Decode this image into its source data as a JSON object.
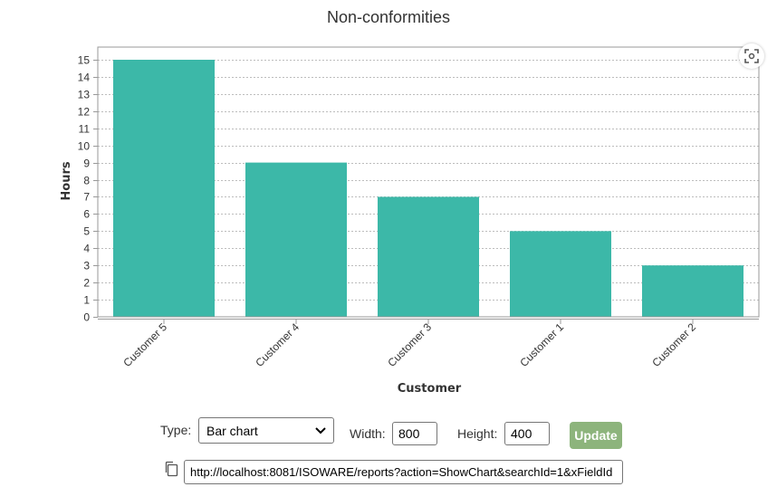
{
  "chart_data": {
    "type": "bar",
    "title": "Non-conformities",
    "xlabel": "Customer",
    "ylabel": "Hours",
    "categories": [
      "Customer 5",
      "Customer 4",
      "Customer 3",
      "Customer 1",
      "Customer 2"
    ],
    "values": [
      15,
      9,
      7,
      5,
      3
    ],
    "ylim": [
      0,
      15
    ],
    "yticks": [
      "0",
      "1",
      "2",
      "3",
      "4",
      "5",
      "6",
      "7",
      "8",
      "9",
      "10",
      "11",
      "12",
      "13",
      "14",
      "15"
    ],
    "bar_color": "#3cb8a8",
    "grid": true
  },
  "controls": {
    "type_label": "Type:",
    "type_value": "Bar chart",
    "width_label": "Width:",
    "width_value": "800",
    "height_label": "Height:",
    "height_value": "400",
    "update_label": "Update",
    "url_value": "http://localhost:8081/ISOWARE/reports?action=ShowChart&searchId=1&xFieldId"
  },
  "icons": {
    "zoom": "zoom-reset-icon",
    "copy": "copy-icon",
    "select_arrow": "chevron-down-icon"
  }
}
